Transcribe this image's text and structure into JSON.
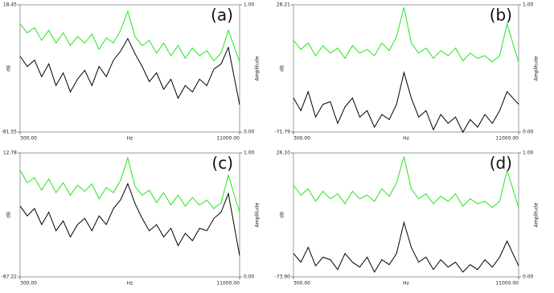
{
  "chart_data": [
    {
      "type": "line",
      "label": "(a)",
      "ylabel": "dB",
      "y2label": "Amplitude",
      "xlabel": "Hz",
      "xlim": [
        300,
        11000
      ],
      "ylim": [
        -81.55,
        18.45
      ],
      "y2lim": [
        0,
        1
      ],
      "xticks": [
        {
          "value": 300,
          "label": "300.00"
        },
        {
          "value": 11000,
          "label": "11000.00"
        }
      ],
      "yticks": [
        -81.55,
        18.45
      ],
      "y2ticks": [
        {
          "value": 0,
          "label": "0.00"
        },
        {
          "value": 1,
          "label": "1.00"
        }
      ],
      "x": [
        300,
        650,
        1000,
        1350,
        1700,
        2050,
        2400,
        2750,
        3100,
        3450,
        3800,
        4150,
        4500,
        4850,
        5200,
        5550,
        5900,
        6250,
        6600,
        6950,
        7300,
        7650,
        8000,
        8350,
        8700,
        9050,
        9400,
        9750,
        10100,
        10450,
        11000
      ],
      "series": [
        {
          "color": "#22e61c",
          "axis": "y2",
          "values": [
            0.85,
            0.78,
            0.82,
            0.72,
            0.8,
            0.7,
            0.78,
            0.68,
            0.75,
            0.7,
            0.77,
            0.65,
            0.74,
            0.7,
            0.8,
            0.95,
            0.75,
            0.68,
            0.72,
            0.62,
            0.7,
            0.6,
            0.68,
            0.58,
            0.66,
            0.6,
            0.64,
            0.56,
            0.62,
            0.8,
            0.55
          ]
        },
        {
          "color": "#000000",
          "values": [
            -22,
            -30,
            -25,
            -38,
            -28,
            -45,
            -35,
            -50,
            -40,
            -33,
            -45,
            -30,
            -38,
            -25,
            -18,
            -8,
            -20,
            -30,
            -42,
            -35,
            -48,
            -40,
            -55,
            -45,
            -50,
            -40,
            -45,
            -32,
            -28,
            -15,
            -60
          ]
        }
      ]
    },
    {
      "type": "line",
      "label": "(b)",
      "ylabel": "dB",
      "y2label": "Amplitude",
      "xlabel": "Hz",
      "xlim": [
        300,
        11000
      ],
      "ylim": [
        -71.79,
        28.21
      ],
      "y2lim": [
        0,
        1
      ],
      "xticks": [
        {
          "value": 300,
          "label": "300.00"
        },
        {
          "value": 11000,
          "label": "11000.00"
        }
      ],
      "yticks": [
        -71.79,
        28.21
      ],
      "y2ticks": [
        {
          "value": 0,
          "label": "0.00"
        },
        {
          "value": 1,
          "label": "1.00"
        }
      ],
      "x": [
        300,
        650,
        1000,
        1350,
        1700,
        2050,
        2400,
        2750,
        3100,
        3450,
        3800,
        4150,
        4500,
        4850,
        5200,
        5550,
        5900,
        6250,
        6600,
        6950,
        7300,
        7650,
        8000,
        8350,
        8700,
        9050,
        9400,
        9750,
        10100,
        10450,
        11000
      ],
      "series": [
        {
          "color": "#22e61c",
          "axis": "y2",
          "values": [
            0.72,
            0.65,
            0.7,
            0.6,
            0.68,
            0.62,
            0.66,
            0.58,
            0.68,
            0.62,
            0.65,
            0.6,
            0.7,
            0.64,
            0.75,
            0.98,
            0.7,
            0.62,
            0.66,
            0.58,
            0.64,
            0.6,
            0.66,
            0.56,
            0.62,
            0.58,
            0.6,
            0.55,
            0.6,
            0.85,
            0.55
          ]
        },
        {
          "color": "#000000",
          "values": [
            -45,
            -55,
            -40,
            -60,
            -50,
            -48,
            -65,
            -52,
            -45,
            -60,
            -55,
            -68,
            -58,
            -62,
            -50,
            -25,
            -45,
            -60,
            -55,
            -70,
            -58,
            -65,
            -60,
            -72,
            -62,
            -68,
            -58,
            -65,
            -55,
            -40,
            -50
          ]
        }
      ]
    },
    {
      "type": "line",
      "label": "(c)",
      "ylabel": "dB",
      "y2label": "Amplitude",
      "xlabel": "Hz",
      "xlim": [
        300,
        11000
      ],
      "ylim": [
        -87.22,
        12.78
      ],
      "y2lim": [
        0,
        1
      ],
      "xticks": [
        {
          "value": 300,
          "label": "300.00"
        },
        {
          "value": 11000,
          "label": "11000.00"
        }
      ],
      "yticks": [
        -87.22,
        12.78
      ],
      "y2ticks": [
        {
          "value": 0,
          "label": "0.00"
        },
        {
          "value": 1,
          "label": "1.00"
        }
      ],
      "x": [
        300,
        650,
        1000,
        1350,
        1700,
        2050,
        2400,
        2750,
        3100,
        3450,
        3800,
        4150,
        4500,
        4850,
        5200,
        5550,
        5900,
        6250,
        6600,
        6950,
        7300,
        7650,
        8000,
        8350,
        8700,
        9050,
        9400,
        9750,
        10100,
        10450,
        11000
      ],
      "series": [
        {
          "color": "#22e61c",
          "axis": "y2",
          "values": [
            0.86,
            0.76,
            0.8,
            0.7,
            0.79,
            0.68,
            0.76,
            0.66,
            0.74,
            0.69,
            0.75,
            0.63,
            0.72,
            0.68,
            0.78,
            0.96,
            0.73,
            0.66,
            0.7,
            0.6,
            0.68,
            0.58,
            0.66,
            0.57,
            0.64,
            0.58,
            0.62,
            0.55,
            0.6,
            0.82,
            0.52
          ]
        },
        {
          "color": "#000000",
          "values": [
            -30,
            -38,
            -32,
            -45,
            -35,
            -50,
            -42,
            -55,
            -45,
            -40,
            -50,
            -38,
            -45,
            -32,
            -25,
            -12,
            -28,
            -40,
            -50,
            -45,
            -55,
            -48,
            -62,
            -52,
            -58,
            -48,
            -50,
            -40,
            -35,
            -20,
            -70
          ]
        }
      ]
    },
    {
      "type": "line",
      "label": "(d)",
      "ylabel": "dB",
      "y2label": "Amplitude",
      "xlabel": "Hz",
      "xlim": [
        300,
        11000
      ],
      "ylim": [
        -73.9,
        26.1
      ],
      "y2lim": [
        0,
        1
      ],
      "xticks": [
        {
          "value": 300,
          "label": "300.00"
        },
        {
          "value": 11000,
          "label": "11000.00"
        }
      ],
      "yticks": [
        {
          "value": -73.9,
          "label": "-73.90"
        },
        {
          "value": 26.1,
          "label": "26.10"
        }
      ],
      "y2ticks": [
        {
          "value": 0,
          "label": "0.00"
        },
        {
          "value": 1,
          "label": "1.00"
        }
      ],
      "x": [
        300,
        650,
        1000,
        1350,
        1700,
        2050,
        2400,
        2750,
        3100,
        3450,
        3800,
        4150,
        4500,
        4850,
        5200,
        5550,
        5900,
        6250,
        6600,
        6950,
        7300,
        7650,
        8000,
        8350,
        8700,
        9050,
        9400,
        9750,
        10100,
        10450,
        11000
      ],
      "series": [
        {
          "color": "#22e61c",
          "axis": "y2",
          "values": [
            0.74,
            0.66,
            0.71,
            0.61,
            0.69,
            0.63,
            0.67,
            0.59,
            0.69,
            0.63,
            0.66,
            0.61,
            0.71,
            0.65,
            0.76,
            0.97,
            0.71,
            0.63,
            0.67,
            0.59,
            0.65,
            0.61,
            0.67,
            0.57,
            0.63,
            0.59,
            0.61,
            0.56,
            0.61,
            0.86,
            0.56
          ]
        },
        {
          "color": "#000000",
          "values": [
            -55,
            -62,
            -50,
            -65,
            -58,
            -60,
            -68,
            -55,
            -62,
            -66,
            -58,
            -70,
            -60,
            -64,
            -55,
            -30,
            -50,
            -62,
            -58,
            -68,
            -60,
            -66,
            -62,
            -70,
            -64,
            -68,
            -60,
            -66,
            -58,
            -45,
            -65
          ]
        }
      ]
    }
  ]
}
